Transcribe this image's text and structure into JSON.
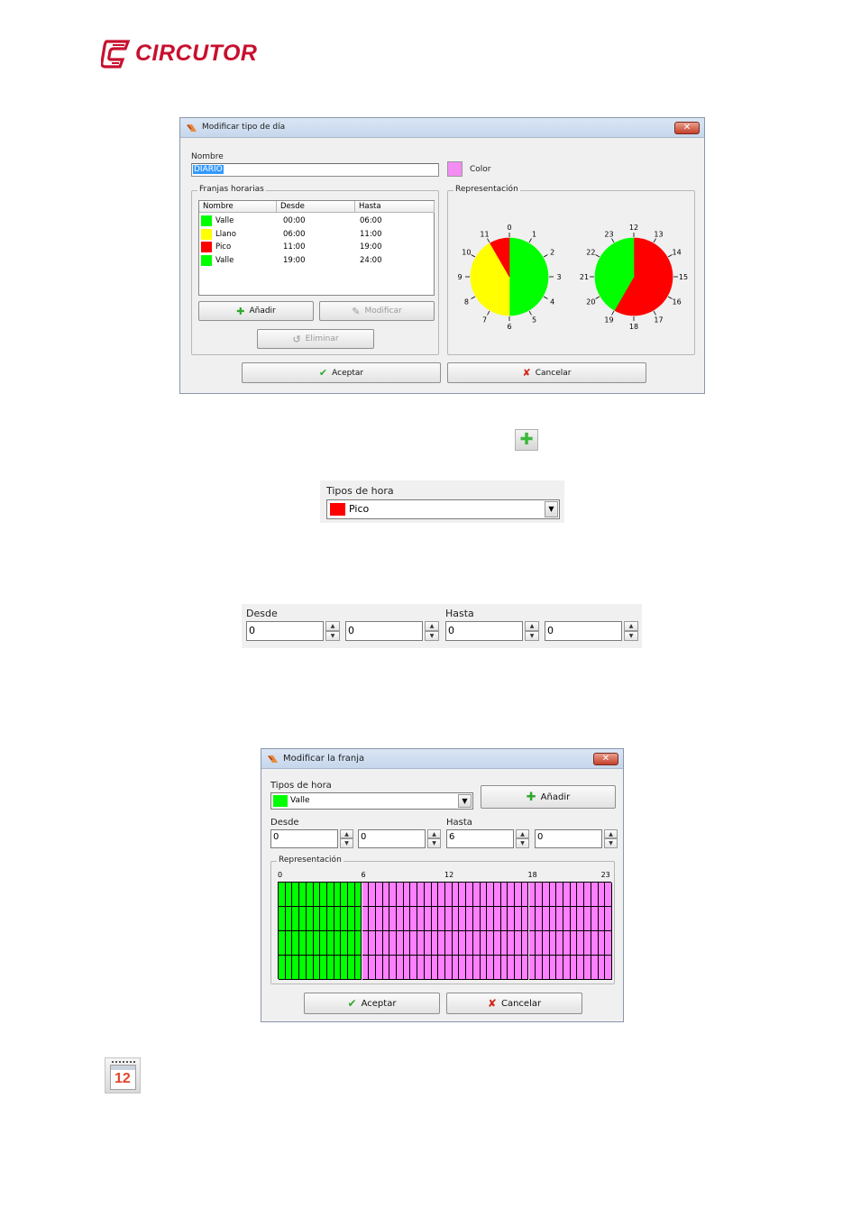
{
  "brand": {
    "name": "CIRCUTOR",
    "color": "#c8102e"
  },
  "dialog1": {
    "title": "Modificar tipo de día",
    "nombre_label": "Nombre",
    "nombre_value": "DIARIO",
    "color_label": "Color",
    "color_value": "#f48cf4",
    "franjas_title": "Franjas horarias",
    "columns": [
      "Nombre",
      "Desde",
      "Hasta"
    ],
    "rows": [
      {
        "nombre": "Valle",
        "desde": "00:00",
        "hasta": "06:00",
        "color": "#00ff00"
      },
      {
        "nombre": "Llano",
        "desde": "06:00",
        "hasta": "11:00",
        "color": "#ffff00"
      },
      {
        "nombre": "Pico",
        "desde": "11:00",
        "hasta": "19:00",
        "color": "#ff0000"
      },
      {
        "nombre": "Valle",
        "desde": "19:00",
        "hasta": "24:00",
        "color": "#00ff00"
      }
    ],
    "btn_anadir": "Añadir",
    "btn_modificar": "Modificar",
    "btn_eliminar": "Eliminar",
    "representacion_title": "Representación",
    "clock_am_labels": [
      "0",
      "1",
      "2",
      "3",
      "4",
      "5",
      "6",
      "7",
      "8",
      "9",
      "10",
      "11"
    ],
    "clock_pm_labels": [
      "12",
      "13",
      "14",
      "15",
      "16",
      "17",
      "18",
      "19",
      "20",
      "21",
      "22",
      "23"
    ],
    "btn_aceptar": "Aceptar",
    "btn_cancelar": "Cancelar"
  },
  "add_icon_caption": "add-icon",
  "tipos_panel": {
    "label": "Tipos de hora",
    "selected": "Pico",
    "selected_color": "#ff0000"
  },
  "hours_panel": {
    "desde_label": "Desde",
    "hasta_label": "Hasta",
    "desde_h": "0",
    "desde_m": "0",
    "hasta_h": "0",
    "hasta_m": "0"
  },
  "dialog2": {
    "title": "Modificar la franja",
    "tipos_label": "Tipos de hora",
    "selected": "Valle",
    "selected_color": "#00ff00",
    "btn_anadir": "Añadir",
    "desde_label": "Desde",
    "hasta_label": "Hasta",
    "desde_h": "0",
    "desde_m": "0",
    "hasta_h": "6",
    "hasta_m": "0",
    "representacion_title": "Representación",
    "hour_ticks": [
      "0",
      "6",
      "12",
      "18",
      "23"
    ],
    "green_until_hour": 6,
    "fill_color": "#00ff00",
    "rest_color": "#ff80ff",
    "btn_aceptar": "Aceptar",
    "btn_cancelar": "Cancelar"
  },
  "calendar_icon_day": "12"
}
